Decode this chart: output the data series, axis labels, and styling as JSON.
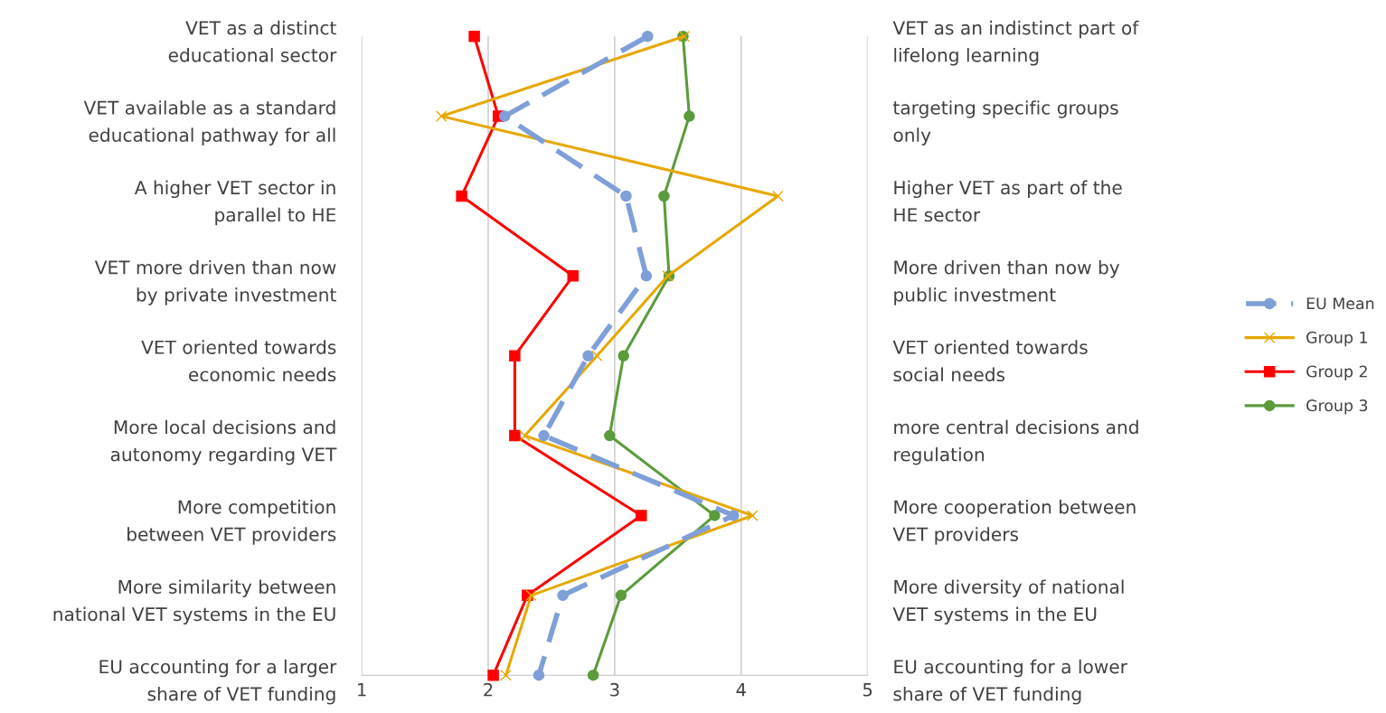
{
  "chart_data": {
    "type": "line",
    "orientation": "horizontal",
    "categories": [
      "VET as a distinct\neducational sector",
      "VET available as a standard\neducational pathway for all",
      "A higher VET sector in\nparallel to HE",
      "VET more driven than now\nby private investment",
      "VET oriented towards\neconomic needs",
      "More local decisions and\nautonomy regarding VET",
      "More competition\nbetween VET providers",
      "More similarity between\nnational VET systems in the EU",
      "EU accounting for a larger\nshare of VET funding"
    ],
    "y2_categories": [
      "VET as an indistinct part of\nlifelong learning",
      "targeting specific groups\nonly",
      "Higher VET as part of the\nHE sector",
      "More driven than now by\npublic investment",
      "VET oriented towards\nsocial needs",
      "more central decisions and\nregulation",
      "More cooperation between\nVET providers",
      "More diversity of national\nVET systems in the EU",
      "EU accounting for a lower\nshare of VET funding"
    ],
    "series": [
      {
        "name": "EU Mean",
        "color": "#7f9fd8",
        "marker": "circle",
        "line_style": "dashed",
        "values": [
          3.26,
          2.13,
          3.09,
          3.25,
          2.79,
          2.44,
          3.94,
          2.59,
          2.4
        ]
      },
      {
        "name": "Group 1",
        "color": "#e6a800",
        "marker": "cross",
        "line_style": "solid",
        "values": [
          3.55,
          1.63,
          4.29,
          3.42,
          2.86,
          2.29,
          4.09,
          2.34,
          2.14
        ]
      },
      {
        "name": "Group 2",
        "color": "#ff0000",
        "marker": "square",
        "line_style": "solid",
        "values": [
          1.89,
          2.08,
          1.79,
          2.67,
          2.21,
          2.21,
          3.21,
          2.31,
          2.04
        ]
      },
      {
        "name": "Group 3",
        "color": "#5b9b3c",
        "marker": "circle",
        "line_style": "solid",
        "values": [
          3.54,
          3.59,
          3.39,
          3.43,
          3.07,
          2.96,
          3.79,
          3.05,
          2.83
        ]
      }
    ],
    "xlim": [
      1,
      5
    ],
    "xticks": [
      1,
      2,
      3,
      4,
      5
    ],
    "grid": "x",
    "legend": "right"
  }
}
